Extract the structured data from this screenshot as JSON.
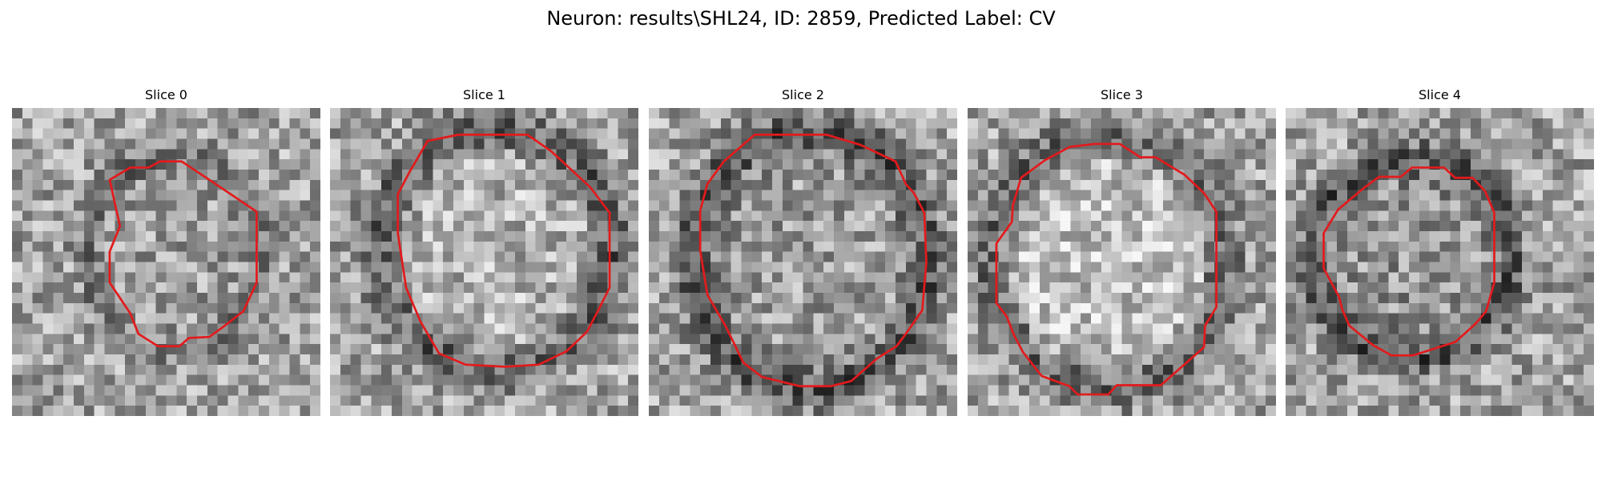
{
  "title": "Neuron: results\\SHL24, ID: 2859, Predicted Label: CV",
  "colormap": "grayscale",
  "contour_color": "#e31a1c",
  "grid_size": 30,
  "slices": [
    {
      "label": "Slice 0"
    },
    {
      "label": "Slice 1"
    },
    {
      "label": "Slice 2"
    },
    {
      "label": "Slice 3"
    },
    {
      "label": "Slice 4"
    }
  ]
}
